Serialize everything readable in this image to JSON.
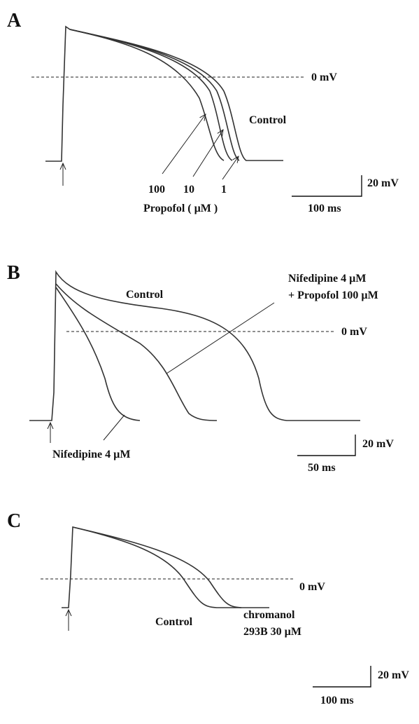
{
  "panels": [
    {
      "label": "A",
      "zero_label": "0 mV",
      "curve_label": "Control",
      "conc_labels": [
        "100",
        "10",
        "1"
      ],
      "drug_label": "Propofol ( µM )",
      "scale_v": "20 mV",
      "scale_t": "100 ms"
    },
    {
      "label": "B",
      "curve_label": "Control",
      "combo_label": [
        "Nifedipine 4 µM",
        "+ Propofol 100 µM"
      ],
      "zero_label": "0 mV",
      "drug_label": "Nifedipine 4 µM",
      "scale_v": "20 mV",
      "scale_t": "50 ms"
    },
    {
      "label": "C",
      "zero_label": "0 mV",
      "curve_label": "Control",
      "drug_label": [
        "chromanol",
        "293B 30 µM"
      ],
      "scale_v": "20 mV",
      "scale_t": "100 ms"
    }
  ]
}
